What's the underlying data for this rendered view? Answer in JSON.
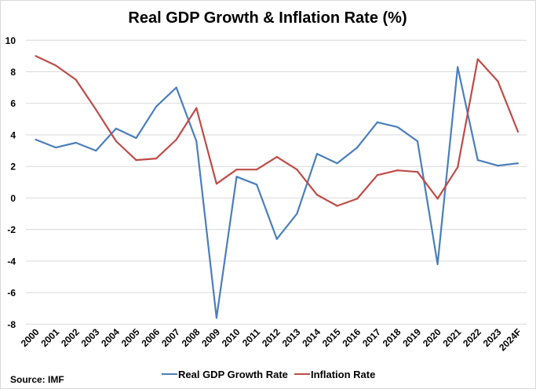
{
  "chart_data": {
    "type": "line",
    "title": "Real GDP Growth & Inflation Rate (%)",
    "xlabel": "",
    "ylabel": "",
    "categories": [
      "2000",
      "2001",
      "2002",
      "2003",
      "2004",
      "2005",
      "2006",
      "2007",
      "2008",
      "2009",
      "2010",
      "2011",
      "2012",
      "2013",
      "2014",
      "2015",
      "2016",
      "2017",
      "2018",
      "2019",
      "2020",
      "2021",
      "2022",
      "2023",
      "2024F"
    ],
    "ylim": [
      -8,
      10
    ],
    "yticks": [
      10,
      8,
      6,
      4,
      2,
      0,
      -2,
      -4,
      -6,
      -8
    ],
    "grid": true,
    "legend_position": "bottom",
    "series": [
      {
        "name": "Real GDP Growth Rate",
        "color": "#4a7ebb",
        "values": [
          3.7,
          3.2,
          3.5,
          3.0,
          4.4,
          3.8,
          5.8,
          7.0,
          3.6,
          -7.6,
          1.35,
          0.85,
          -2.6,
          -1.0,
          2.8,
          2.2,
          3.2,
          4.8,
          4.5,
          3.6,
          -4.2,
          8.3,
          2.4,
          2.05,
          2.2
        ]
      },
      {
        "name": "Inflation Rate",
        "color": "#be4b48",
        "values": [
          9.0,
          8.4,
          7.5,
          5.6,
          3.6,
          2.4,
          2.5,
          3.7,
          5.7,
          0.9,
          1.8,
          1.8,
          2.6,
          1.8,
          0.2,
          -0.5,
          -0.05,
          1.45,
          1.75,
          1.65,
          -0.05,
          1.95,
          8.8,
          7.4,
          4.2
        ]
      }
    ],
    "source": "Source:  IMF"
  }
}
